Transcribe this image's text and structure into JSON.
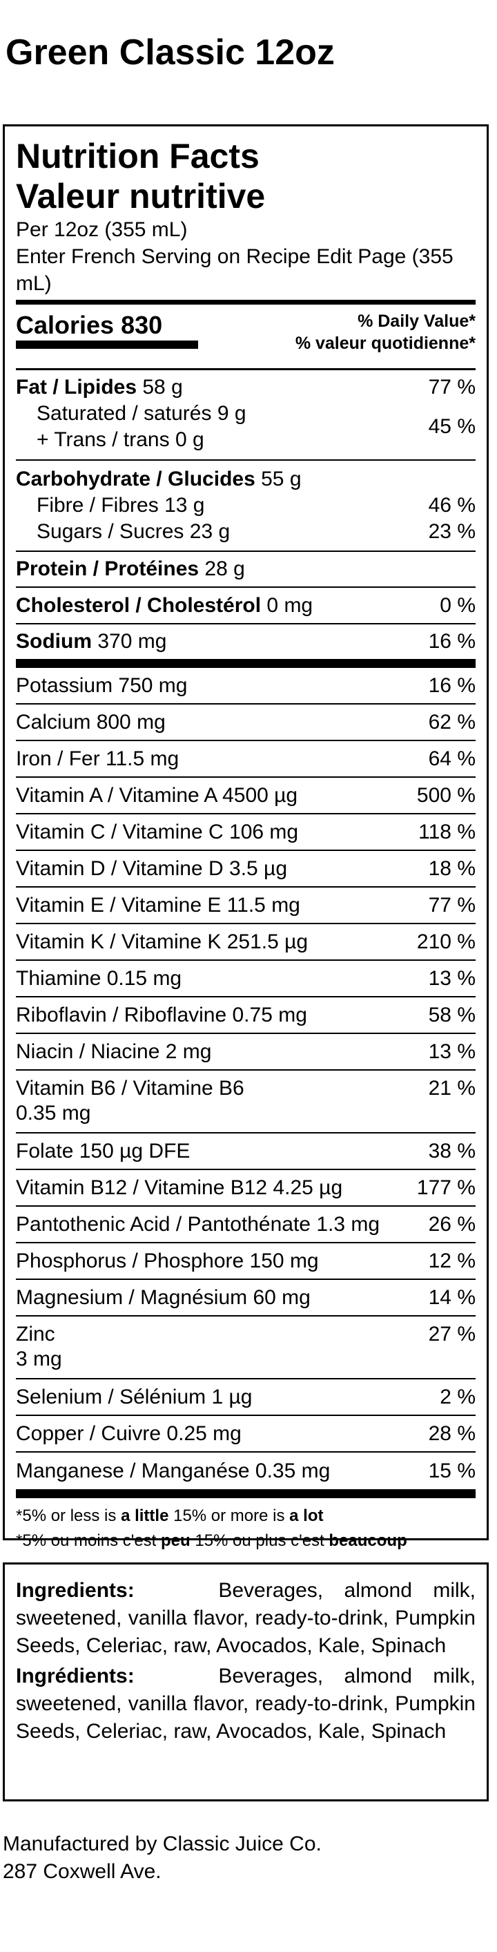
{
  "product_title": "Green Classic 12oz",
  "panel": {
    "title_en": "Nutrition Facts",
    "title_fr": "Valeur nutritive",
    "serving_en": "Per 12oz (355 mL)",
    "serving_fr": "Enter French Serving on Recipe Edit Page (355 mL)",
    "calories_label": "Calories",
    "calories_value": "830",
    "dv_header_en": "% Daily Value*",
    "dv_header_fr": "% valeur quotidienne*"
  },
  "fat": {
    "label": "Fat / Lipides",
    "amount": "58 g",
    "dv": "77 %"
  },
  "saturated": {
    "label": "Saturated / saturés",
    "amount": "9 g"
  },
  "trans": {
    "label": "+ Trans / trans",
    "amount": "0 g"
  },
  "sat_trans_dv": "45 %",
  "carbohydrate": {
    "label": "Carbohydrate / Glucides",
    "amount": "55 g"
  },
  "fibre": {
    "label": "Fibre / Fibres",
    "amount": "13 g",
    "dv": "46 %"
  },
  "sugars": {
    "label": "Sugars / Sucres",
    "amount": "23 g",
    "dv": "23 %"
  },
  "protein": {
    "label": "Protein / Protéines",
    "amount": "28 g"
  },
  "cholesterol": {
    "label": "Cholesterol / Cholestérol",
    "amount": "0 mg",
    "dv": "0 %"
  },
  "sodium": {
    "label": "Sodium",
    "amount": "370 mg",
    "dv": "16 %"
  },
  "micros": [
    {
      "text": "Potassium 750 mg",
      "dv": "16 %"
    },
    {
      "text": "Calcium 800 mg",
      "dv": "62 %"
    },
    {
      "text": "Iron / Fer 11.5 mg",
      "dv": "64 %"
    },
    {
      "text": "Vitamin A / Vitamine A 4500 µg",
      "dv": "500 %"
    },
    {
      "text": "Vitamin C / Vitamine C 106 mg",
      "dv": "118 %"
    },
    {
      "text": "Vitamin D / Vitamine D 3.5 µg",
      "dv": "18 %"
    },
    {
      "text": "Vitamin E / Vitamine E 11.5 mg",
      "dv": "77 %"
    },
    {
      "text": "Vitamin K / Vitamine K 251.5 µg",
      "dv": "210 %"
    },
    {
      "text": "Thiamine 0.15 mg",
      "dv": "13 %"
    },
    {
      "text": "Riboflavin / Riboflavine 0.75 mg",
      "dv": "58 %"
    },
    {
      "text": "Niacin / Niacine 2 mg",
      "dv": "13 %"
    },
    {
      "text": "Vitamin B6 / Vitamine B6",
      "text2": "0.35 mg",
      "dv": "21 %"
    },
    {
      "text": "Folate 150 µg DFE",
      "dv": "38 %"
    },
    {
      "text": "Vitamin B12 / Vitamine B12 4.25 µg",
      "dv": "177 %"
    },
    {
      "text": "Pantothenic Acid / Pantothénate 1.3 mg",
      "dv": "26 %"
    },
    {
      "text": "Phosphorus / Phosphore 150 mg",
      "dv": "12 %"
    },
    {
      "text": "Magnesium / Magnésium 60 mg",
      "dv": "14 %"
    },
    {
      "text": "Zinc",
      "text2": "3 mg",
      "dv": "27 %"
    },
    {
      "text": "Selenium / Sélénium 1 µg",
      "dv": "2 %"
    },
    {
      "text": "Copper / Cuivre 0.25 mg",
      "dv": "28 %"
    },
    {
      "text": "Manganese / Manganése 0.35 mg",
      "dv": "15 %"
    }
  ],
  "footnote": {
    "en_pre": "*5% or less is ",
    "en_little": "a little",
    "en_mid": " 15% or more is ",
    "en_lot": "a lot",
    "fr_pre": "*5% ou moins c'est ",
    "fr_little": "peu",
    "fr_mid": " 15% ou plus c'est ",
    "fr_lot": "beaucoup"
  },
  "ingredients": {
    "label_en": "Ingredients:",
    "text_en": "Beverages, almond milk, sweetened, vanilla flavor, ready-to-drink, Pumpkin Seeds, Celeriac, raw, Avocados, Kale, Spinach",
    "label_fr": "Ingrédients:",
    "text_fr": "Beverages, almond milk, sweetened, vanilla flavor, ready-to-drink, Pumpkin Seeds, Celeriac, raw, Avocados, Kale, Spinach"
  },
  "manufacturer": {
    "line1": "Manufactured by Classic Juice Co.",
    "line2": "287 Coxwell Ave."
  }
}
